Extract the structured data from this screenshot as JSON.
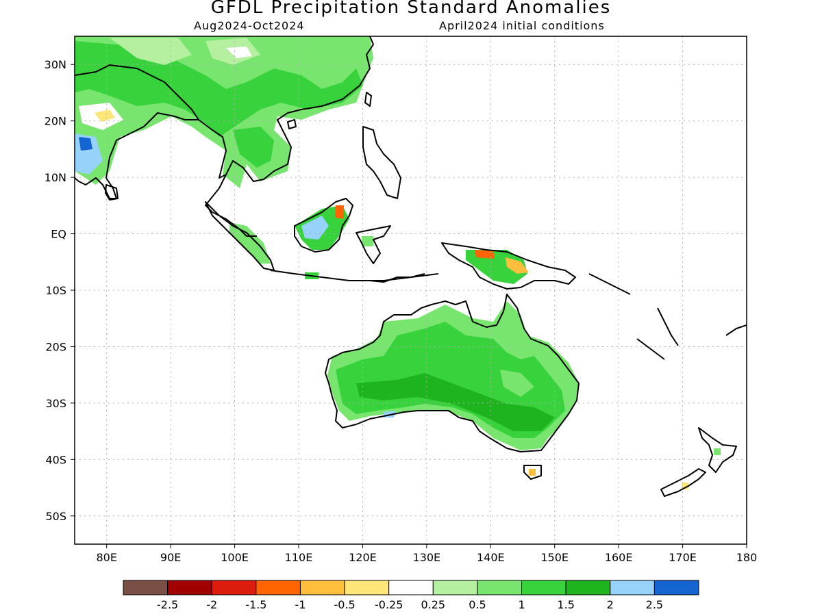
{
  "title": "GFDL Precipitation Standard Anomalies",
  "subtitle_left": "Aug2024-Oct2024",
  "subtitle_right": "April2024 initial conditions",
  "lat_labels": [
    "30N",
    "20N",
    "10N",
    "EQ",
    "10S",
    "20S",
    "30S",
    "40S",
    "50S"
  ],
  "lon_labels": [
    "80E",
    "90E",
    "100E",
    "110E",
    "120E",
    "130E",
    "140E",
    "150E",
    "160E",
    "170E",
    "180"
  ],
  "colorbar": {
    "colors": [
      "#7a4f45",
      "#a00000",
      "#dc1c0c",
      "#ff6400",
      "#ffbe3c",
      "#ffe678",
      "#ffffff",
      "#b4f0a0",
      "#78e66e",
      "#37d23c",
      "#1eb41e",
      "#96d2fa",
      "#1464d2"
    ],
    "labels": [
      "-2.5",
      "-2",
      "-1.5",
      "-1",
      "-0.5",
      "-0.25",
      "0.25",
      "0.5",
      "1",
      "1.5",
      "2",
      "2.5"
    ]
  },
  "map_extent": {
    "lon": [
      75,
      180
    ],
    "lat": [
      -55,
      35
    ]
  }
}
